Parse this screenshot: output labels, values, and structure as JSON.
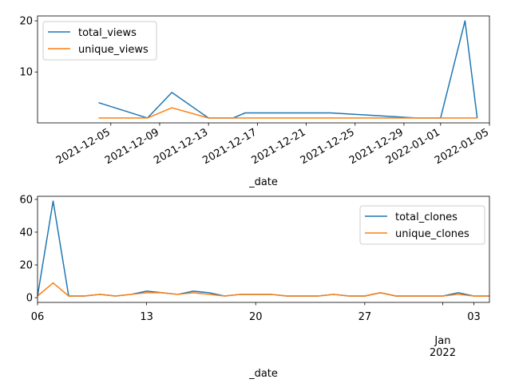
{
  "chart_data": [
    {
      "type": "line",
      "xlabel": "_date",
      "ylabel": "",
      "ylim": [
        0.05,
        20.95
      ],
      "xlim": [
        "2021-11-29",
        "2022-01-05"
      ],
      "grid": false,
      "legend": "top-left",
      "x_ticks": [
        "2021-12-05",
        "2021-12-09",
        "2021-12-13",
        "2021-12-17",
        "2021-12-21",
        "2021-12-25",
        "2021-12-29",
        "2022-01-01",
        "2022-01-05"
      ],
      "y_ticks": [
        10,
        20
      ],
      "y_tick_labels": [
        "10",
        "20"
      ],
      "x": [
        "2021-12-04",
        "2021-12-08",
        "2021-12-10",
        "2021-12-13",
        "2021-12-15",
        "2021-12-16",
        "2021-12-23",
        "2021-12-30",
        "2022-01-01",
        "2022-01-03",
        "2022-01-04"
      ],
      "series": [
        {
          "name": "total_views",
          "color": "#1f77b4",
          "values": [
            4,
            1,
            6,
            1,
            1,
            2,
            2,
            1,
            1,
            20,
            1
          ]
        },
        {
          "name": "unique_views",
          "color": "#ff7f0e",
          "values": [
            1,
            1,
            3,
            1,
            1,
            1,
            1,
            1,
            1,
            1,
            1
          ]
        }
      ]
    },
    {
      "type": "line",
      "xlabel": "_date",
      "ylabel": "",
      "ylim": [
        -2.9,
        61.9
      ],
      "xlim": [
        "2021-12-06",
        "2022-01-04"
      ],
      "grid": false,
      "legend": "top-right",
      "x_ticks": [
        "2021-12-06",
        "2021-12-13",
        "2021-12-20",
        "2021-12-27",
        "2022-01-01",
        "2022-01-03"
      ],
      "x_tick_labels": [
        "06",
        "13",
        "20",
        "27",
        "Jan\n2022",
        "03"
      ],
      "y_ticks": [
        0,
        20,
        40,
        60
      ],
      "y_tick_labels": [
        "0",
        "20",
        "40",
        "60"
      ],
      "x": [
        "2021-12-06",
        "2021-12-07",
        "2021-12-08",
        "2021-12-09",
        "2021-12-10",
        "2021-12-11",
        "2021-12-12",
        "2021-12-13",
        "2021-12-14",
        "2021-12-15",
        "2021-12-16",
        "2021-12-17",
        "2021-12-18",
        "2021-12-19",
        "2021-12-20",
        "2021-12-21",
        "2021-12-22",
        "2021-12-23",
        "2021-12-24",
        "2021-12-25",
        "2021-12-26",
        "2021-12-27",
        "2021-12-28",
        "2021-12-29",
        "2021-12-30",
        "2021-12-31",
        "2022-01-01",
        "2022-01-02",
        "2022-01-03",
        "2022-01-04"
      ],
      "series": [
        {
          "name": "total_clones",
          "color": "#1f77b4",
          "values": [
            1,
            59,
            1,
            1,
            2,
            1,
            2,
            4,
            3,
            2,
            4,
            3,
            1,
            2,
            2,
            2,
            1,
            1,
            1,
            2,
            1,
            1,
            3,
            1,
            1,
            1,
            1,
            3,
            1,
            1
          ]
        },
        {
          "name": "unique_clones",
          "color": "#ff7f0e",
          "values": [
            1,
            9,
            1,
            1,
            2,
            1,
            2,
            3,
            3,
            2,
            3,
            2,
            1,
            2,
            2,
            2,
            1,
            1,
            1,
            2,
            1,
            1,
            3,
            1,
            1,
            1,
            1,
            2,
            1,
            1
          ]
        }
      ]
    }
  ]
}
